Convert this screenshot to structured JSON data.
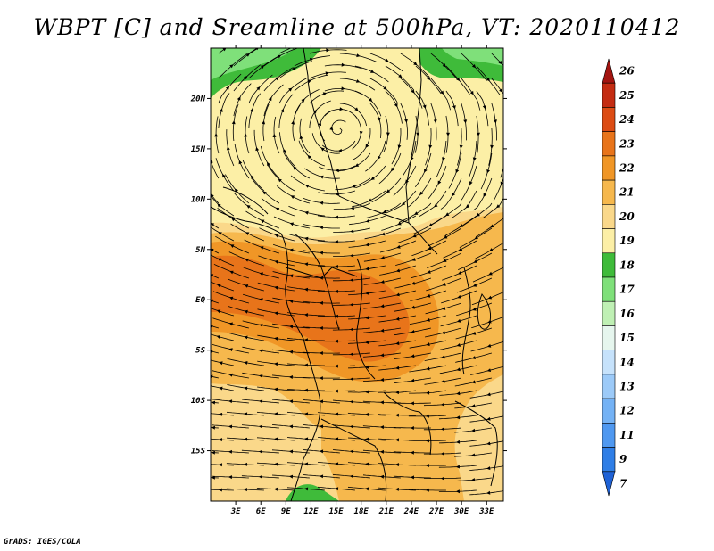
{
  "title": "WBPT [C] and Sreamline at 500hPa, VT: 2020110412",
  "credit": "GrADS: IGES/COLA",
  "map": {
    "lon_labels": [
      "3E",
      "6E",
      "9E",
      "12E",
      "15E",
      "18E",
      "21E",
      "24E",
      "27E",
      "30E",
      "33E"
    ],
    "lat_labels": [
      "20N",
      "15N",
      "10N",
      "5N",
      "EQ",
      "5S",
      "10S",
      "15S"
    ],
    "lon_range": [
      0,
      35
    ],
    "lat_range": [
      -20,
      25
    ]
  },
  "colorbar": {
    "labels": [
      "7",
      "9",
      "11",
      "12",
      "13",
      "14",
      "15",
      "16",
      "17",
      "18",
      "19",
      "20",
      "21",
      "22",
      "23",
      "24",
      "25",
      "26"
    ],
    "colors": [
      "#1f62d6",
      "#2f7ee6",
      "#4f98f0",
      "#74b2f5",
      "#9ccaf8",
      "#c6e2fb",
      "#e6f6ee",
      "#bff0b4",
      "#7fe07a",
      "#3fbb3a",
      "#fcefa6",
      "#fad88a",
      "#f6b84d",
      "#f09626",
      "#e8741a",
      "#dc4c14",
      "#c42c12",
      "#a31410"
    ]
  },
  "wbpt_regions": [
    {
      "level": "18",
      "color": "#3fbb3a"
    },
    {
      "level": "19",
      "color": "#fcefa6"
    },
    {
      "level": "20",
      "color": "#fad88a"
    },
    {
      "level": "21",
      "color": "#f6b84d"
    },
    {
      "level": "22",
      "color": "#f09626"
    },
    {
      "level": "23",
      "color": "#e8741a"
    }
  ]
}
